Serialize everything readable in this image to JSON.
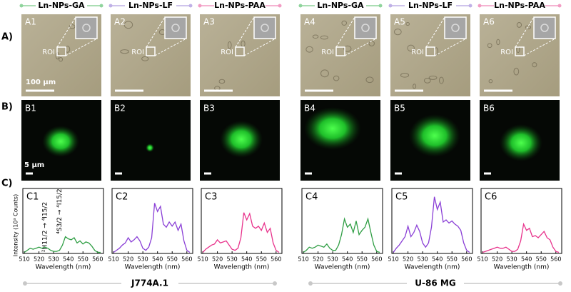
{
  "headers": [
    {
      "text": "Ln-NPs-GA",
      "color": "#8fd49c"
    },
    {
      "text": "Ln-NPs-LF",
      "color": "#bfb0e6"
    },
    {
      "text": "Ln-NPs-PAA",
      "color": "#f29cc4"
    },
    {
      "text": "Ln-NPs-GA",
      "color": "#8fd49c"
    },
    {
      "text": "Ln-NPs-LF",
      "color": "#bfb0e6"
    },
    {
      "text": "Ln-NPs-PAA",
      "color": "#f29cc4"
    }
  ],
  "row_labels": [
    "A)",
    "B)",
    "C)"
  ],
  "panels_a": [
    "A1",
    "A2",
    "A3",
    "A4",
    "A5",
    "A6"
  ],
  "roi_label": "ROI",
  "panels_b": [
    "B1",
    "B2",
    "B3",
    "B4",
    "B5",
    "B6"
  ],
  "scale_bar_a": "100 µm",
  "scale_bar_b": "5 µm",
  "cell_lines": [
    "J774A.1",
    "U-86 MG"
  ],
  "chart_data": [
    {
      "type": "line",
      "title": "C1",
      "y_label": "Intensity (10³ Counts)",
      "x_label": "Wavelength (nm)",
      "annotations": [
        "²H11/2 → ⁴I15/2",
        "⁴S3/2 → ⁴I15/2"
      ],
      "x": [
        510,
        512,
        514,
        516,
        518,
        520,
        522,
        524,
        526,
        528,
        530,
        532,
        534,
        536,
        538,
        540,
        542,
        544,
        546,
        548,
        550,
        552,
        554,
        556,
        558,
        560,
        562
      ],
      "series": [
        {
          "color": "#2f9e44",
          "values": [
            0.1,
            0.3,
            0.5,
            0.4,
            0.5,
            0.6,
            0.5,
            0.6,
            0.5,
            0.3,
            0.2,
            0.2,
            0.3,
            0.8,
            1.6,
            1.4,
            1.3,
            1.5,
            1.0,
            1.2,
            0.9,
            1.1,
            1.0,
            0.7,
            0.3,
            0.1,
            0.1
          ]
        }
      ],
      "xlim": [
        509,
        564
      ],
      "ylim": [
        0,
        6.2
      ],
      "xticks": [
        510,
        520,
        530,
        540,
        550,
        560
      ]
    },
    {
      "type": "line",
      "title": "C2",
      "x_label": "Wavelength (nm)",
      "x": [
        510,
        512,
        514,
        516,
        518,
        520,
        522,
        524,
        526,
        528,
        530,
        532,
        534,
        536,
        538,
        540,
        542,
        544,
        546,
        548,
        550,
        552,
        554,
        556,
        558,
        560,
        562
      ],
      "series": [
        {
          "color": "#8a3fd6",
          "values": [
            0.1,
            0.3,
            0.5,
            0.8,
            1.0,
            1.5,
            1.1,
            1.3,
            1.6,
            1.2,
            0.5,
            0.3,
            0.6,
            1.5,
            4.8,
            4.0,
            4.5,
            2.8,
            2.5,
            3.0,
            2.6,
            3.0,
            2.2,
            2.8,
            1.2,
            0.3,
            0.1
          ]
        }
      ],
      "xlim": [
        509,
        564
      ],
      "ylim": [
        0,
        6.2
      ],
      "xticks": [
        510,
        520,
        530,
        540,
        550,
        560
      ]
    },
    {
      "type": "line",
      "title": "C3",
      "x_label": "Wavelength (nm)",
      "x": [
        510,
        512,
        514,
        516,
        518,
        520,
        522,
        524,
        526,
        528,
        530,
        532,
        534,
        536,
        538,
        540,
        542,
        544,
        546,
        548,
        550,
        552,
        554,
        556,
        558,
        560,
        562
      ],
      "series": [
        {
          "color": "#e8338c",
          "values": [
            0.1,
            0.4,
            0.6,
            0.8,
            0.9,
            1.3,
            1.0,
            1.1,
            1.2,
            0.8,
            0.4,
            0.3,
            0.5,
            1.5,
            3.9,
            3.2,
            3.8,
            2.6,
            2.4,
            2.6,
            2.2,
            2.9,
            2.0,
            2.4,
            1.0,
            0.3,
            0.1
          ]
        }
      ],
      "xlim": [
        509,
        564
      ],
      "ylim": [
        0,
        6.2
      ],
      "xticks": [
        510,
        520,
        530,
        540,
        550,
        560
      ]
    },
    {
      "type": "line",
      "title": "C4",
      "x_label": "Wavelength (nm)",
      "x": [
        510,
        512,
        514,
        516,
        518,
        520,
        522,
        524,
        526,
        528,
        530,
        532,
        534,
        536,
        538,
        540,
        542,
        544,
        546,
        548,
        550,
        552,
        554,
        556,
        558,
        560,
        562
      ],
      "series": [
        {
          "color": "#2f9e44",
          "values": [
            0.1,
            0.3,
            0.6,
            0.5,
            0.6,
            0.8,
            0.7,
            0.6,
            0.9,
            0.5,
            0.3,
            0.3,
            0.8,
            1.8,
            3.3,
            2.5,
            2.8,
            2.0,
            3.1,
            1.8,
            2.2,
            2.5,
            3.3,
            2.0,
            0.8,
            0.2,
            0.1
          ]
        }
      ],
      "xlim": [
        509,
        564
      ],
      "ylim": [
        0,
        6.2
      ],
      "xticks": [
        510,
        520,
        530,
        540,
        550,
        560
      ]
    },
    {
      "type": "line",
      "title": "C5",
      "x_label": "Wavelength (nm)",
      "x": [
        510,
        512,
        514,
        516,
        518,
        520,
        522,
        524,
        526,
        528,
        530,
        532,
        534,
        536,
        538,
        540,
        542,
        544,
        546,
        548,
        550,
        552,
        554,
        556,
        558,
        560,
        562
      ],
      "series": [
        {
          "color": "#8a3fd6",
          "values": [
            0.1,
            0.5,
            0.8,
            1.2,
            1.6,
            2.6,
            1.6,
            2.0,
            2.7,
            2.1,
            1.0,
            0.6,
            1.0,
            2.5,
            5.4,
            4.2,
            4.9,
            3.0,
            3.2,
            2.9,
            3.1,
            2.8,
            2.6,
            2.2,
            1.0,
            0.3,
            0.1
          ]
        }
      ],
      "xlim": [
        509,
        564
      ],
      "ylim": [
        0,
        6.2
      ],
      "xticks": [
        510,
        520,
        530,
        540,
        550,
        560
      ]
    },
    {
      "type": "line",
      "title": "C6",
      "x_label": "Wavelength (nm)",
      "x": [
        510,
        512,
        514,
        516,
        518,
        520,
        522,
        524,
        526,
        528,
        530,
        532,
        534,
        536,
        538,
        540,
        542,
        544,
        546,
        548,
        550,
        552,
        554,
        556,
        558,
        560,
        562
      ],
      "series": [
        {
          "color": "#e8338c",
          "values": [
            0.1,
            0.2,
            0.3,
            0.4,
            0.5,
            0.6,
            0.5,
            0.5,
            0.6,
            0.4,
            0.2,
            0.2,
            0.4,
            1.2,
            2.8,
            2.2,
            2.4,
            1.6,
            1.7,
            1.5,
            1.8,
            2.1,
            1.5,
            1.3,
            0.6,
            0.2,
            0.1
          ]
        }
      ],
      "xlim": [
        509,
        564
      ],
      "ylim": [
        0,
        6.2
      ],
      "xticks": [
        510,
        520,
        530,
        540,
        550,
        560
      ]
    }
  ]
}
